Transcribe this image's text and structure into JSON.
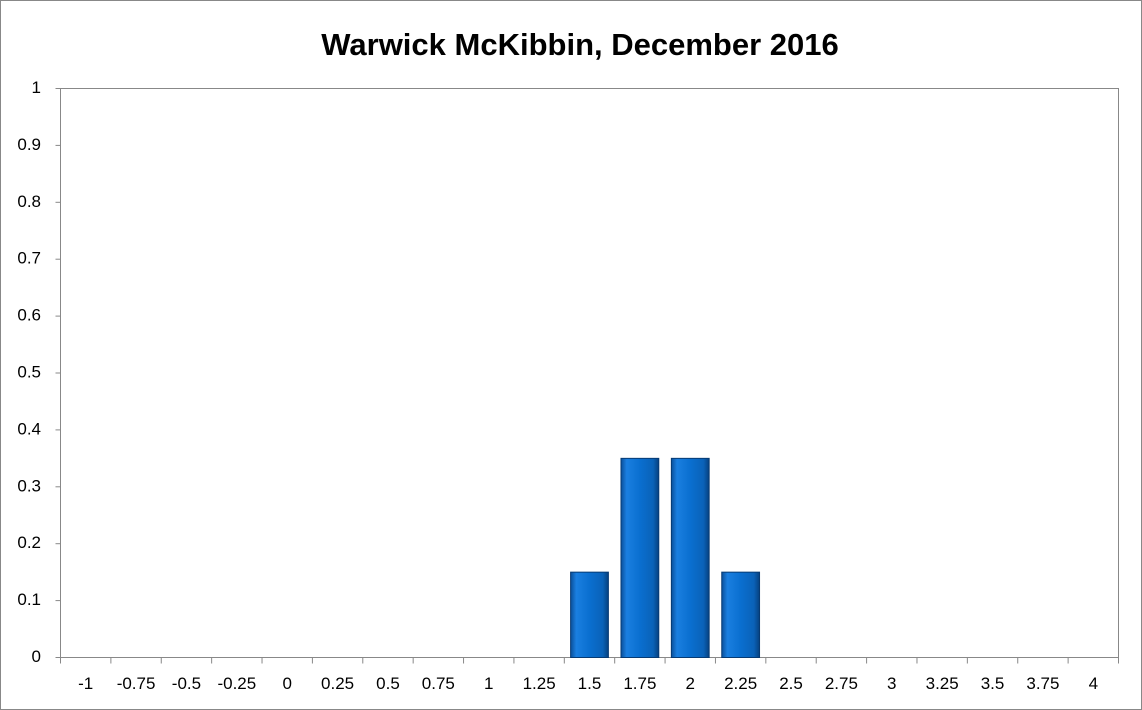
{
  "chart_data": {
    "type": "bar",
    "title": "Warwick McKibbin, December 2016",
    "categories": [
      "-1",
      "-0.75",
      "-0.5",
      "-0.25",
      "0",
      "0.25",
      "0.5",
      "0.75",
      "1",
      "1.25",
      "1.5",
      "1.75",
      "2",
      "2.25",
      "2.5",
      "2.75",
      "3",
      "3.25",
      "3.5",
      "3.75",
      "4"
    ],
    "values": [
      0,
      0,
      0,
      0,
      0,
      0,
      0,
      0,
      0,
      0,
      0.15,
      0.35,
      0.35,
      0.15,
      0,
      0,
      0,
      0,
      0,
      0,
      0
    ],
    "color": "#0a6fd0",
    "ylim": [
      0,
      1
    ],
    "yticks": [
      0,
      0.1,
      0.2,
      0.3,
      0.4,
      0.5,
      0.6,
      0.7,
      0.8,
      0.9,
      1
    ],
    "grid": false
  }
}
